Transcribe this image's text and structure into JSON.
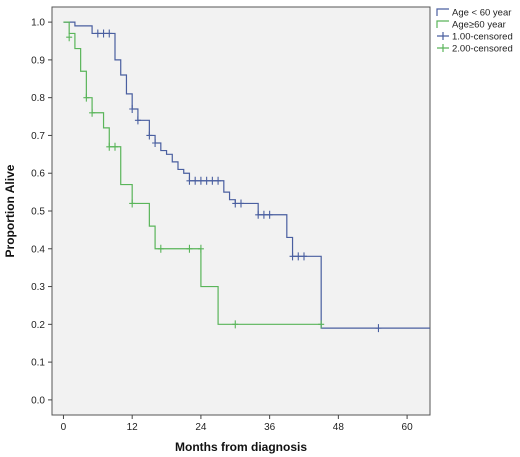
{
  "chart_data": {
    "type": "line",
    "title": "",
    "xlabel": "Months from diagnosis",
    "ylabel": "Proportion Alive",
    "xlim": [
      -2,
      64
    ],
    "ylim": [
      -0.04,
      1.04
    ],
    "xticks": [
      0,
      12,
      24,
      36,
      48,
      60
    ],
    "yticks": [
      0.0,
      0.1,
      0.2,
      0.3,
      0.4,
      0.5,
      0.6,
      0.7,
      0.8,
      0.9,
      1.0
    ],
    "grid": false,
    "legend_position": "top-right",
    "legend": [
      "Age < 60 year",
      "Age≥60 year",
      "1.00-censored",
      "2.00-censored"
    ],
    "series": [
      {
        "name": "Age < 60 year",
        "censored_name": "1.00-censored",
        "color": "#4a5fa0",
        "step_x": [
          0,
          0.8,
          1,
          2,
          2,
          3,
          3,
          5,
          5,
          8,
          8,
          9,
          9,
          10,
          10,
          11,
          11,
          12,
          12,
          13,
          13,
          15,
          15,
          16,
          16,
          17,
          17,
          18,
          18,
          19,
          19,
          20,
          20,
          21,
          21,
          22,
          22,
          28,
          28,
          29,
          29,
          30,
          30,
          34,
          34,
          39,
          39,
          40,
          40,
          45,
          45,
          55,
          55,
          64
        ],
        "step_y": [
          1.0,
          1.0,
          1.0,
          1.0,
          0.99,
          0.99,
          0.99,
          0.99,
          0.97,
          0.97,
          0.97,
          0.97,
          0.9,
          0.9,
          0.86,
          0.86,
          0.81,
          0.81,
          0.77,
          0.77,
          0.74,
          0.74,
          0.7,
          0.7,
          0.68,
          0.68,
          0.66,
          0.66,
          0.65,
          0.65,
          0.63,
          0.63,
          0.61,
          0.61,
          0.6,
          0.6,
          0.58,
          0.58,
          0.55,
          0.55,
          0.53,
          0.53,
          0.52,
          0.52,
          0.49,
          0.49,
          0.43,
          0.43,
          0.38,
          0.38,
          0.19,
          0.19,
          0.19,
          0.19
        ],
        "censored_x": [
          6,
          7,
          8,
          12,
          13,
          15,
          16,
          22,
          23,
          24,
          25,
          26,
          27,
          30,
          31,
          34,
          35,
          36,
          40,
          41,
          42,
          55
        ],
        "censored_y": [
          0.97,
          0.97,
          0.97,
          0.77,
          0.74,
          0.7,
          0.68,
          0.58,
          0.58,
          0.58,
          0.58,
          0.58,
          0.58,
          0.52,
          0.52,
          0.49,
          0.49,
          0.49,
          0.38,
          0.38,
          0.38,
          0.19
        ]
      },
      {
        "name": "Age≥60 year",
        "censored_name": "2.00-censored",
        "color": "#5ab55a",
        "step_x": [
          0,
          1,
          1,
          2,
          2,
          3,
          3,
          4,
          4,
          5,
          5,
          7,
          7,
          8,
          8,
          10,
          10,
          12,
          12,
          15,
          15,
          16,
          16,
          17,
          17,
          24,
          24,
          27,
          27,
          45
        ],
        "step_y": [
          1.0,
          1.0,
          0.97,
          0.97,
          0.93,
          0.93,
          0.87,
          0.87,
          0.8,
          0.8,
          0.76,
          0.76,
          0.72,
          0.72,
          0.67,
          0.67,
          0.57,
          0.57,
          0.52,
          0.52,
          0.46,
          0.46,
          0.4,
          0.4,
          0.4,
          0.4,
          0.3,
          0.3,
          0.2,
          0.2
        ],
        "censored_x": [
          1,
          4,
          5,
          8,
          9,
          12,
          17,
          22,
          24,
          30,
          45
        ],
        "censored_y": [
          0.96,
          0.8,
          0.76,
          0.67,
          0.67,
          0.52,
          0.4,
          0.4,
          0.4,
          0.2,
          0.2
        ]
      }
    ]
  }
}
